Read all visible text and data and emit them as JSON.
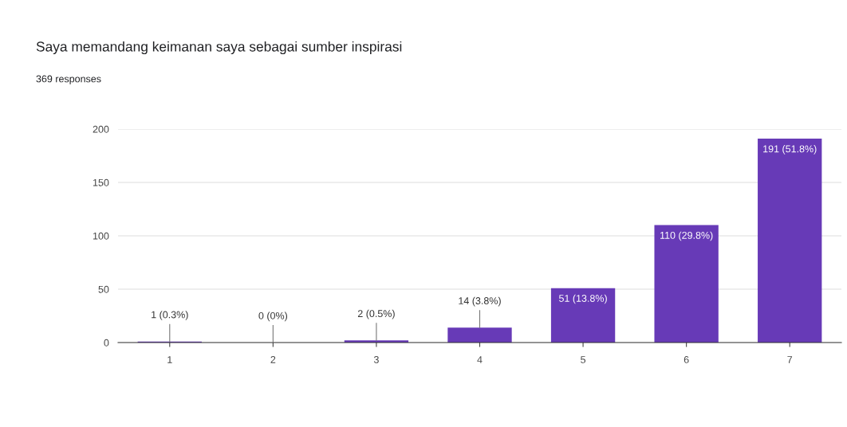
{
  "chart_data": {
    "type": "bar",
    "title": "Saya memandang keimanan saya sebagai sumber inspirasi",
    "subtitle": "369 responses",
    "categories": [
      "1",
      "2",
      "3",
      "4",
      "5",
      "6",
      "7"
    ],
    "values": [
      1,
      0,
      2,
      14,
      51,
      110,
      191
    ],
    "value_labels": [
      "1 (0.3%)",
      "0 (0%)",
      "2 (0.5%)",
      "14 (3.8%)",
      "51 (13.8%)",
      "110 (29.8%)",
      "191 (51.8%)"
    ],
    "color": "#673ab7",
    "ylim": [
      0,
      200
    ],
    "yticks": [
      0,
      50,
      100,
      150,
      200
    ],
    "grid": "y"
  }
}
